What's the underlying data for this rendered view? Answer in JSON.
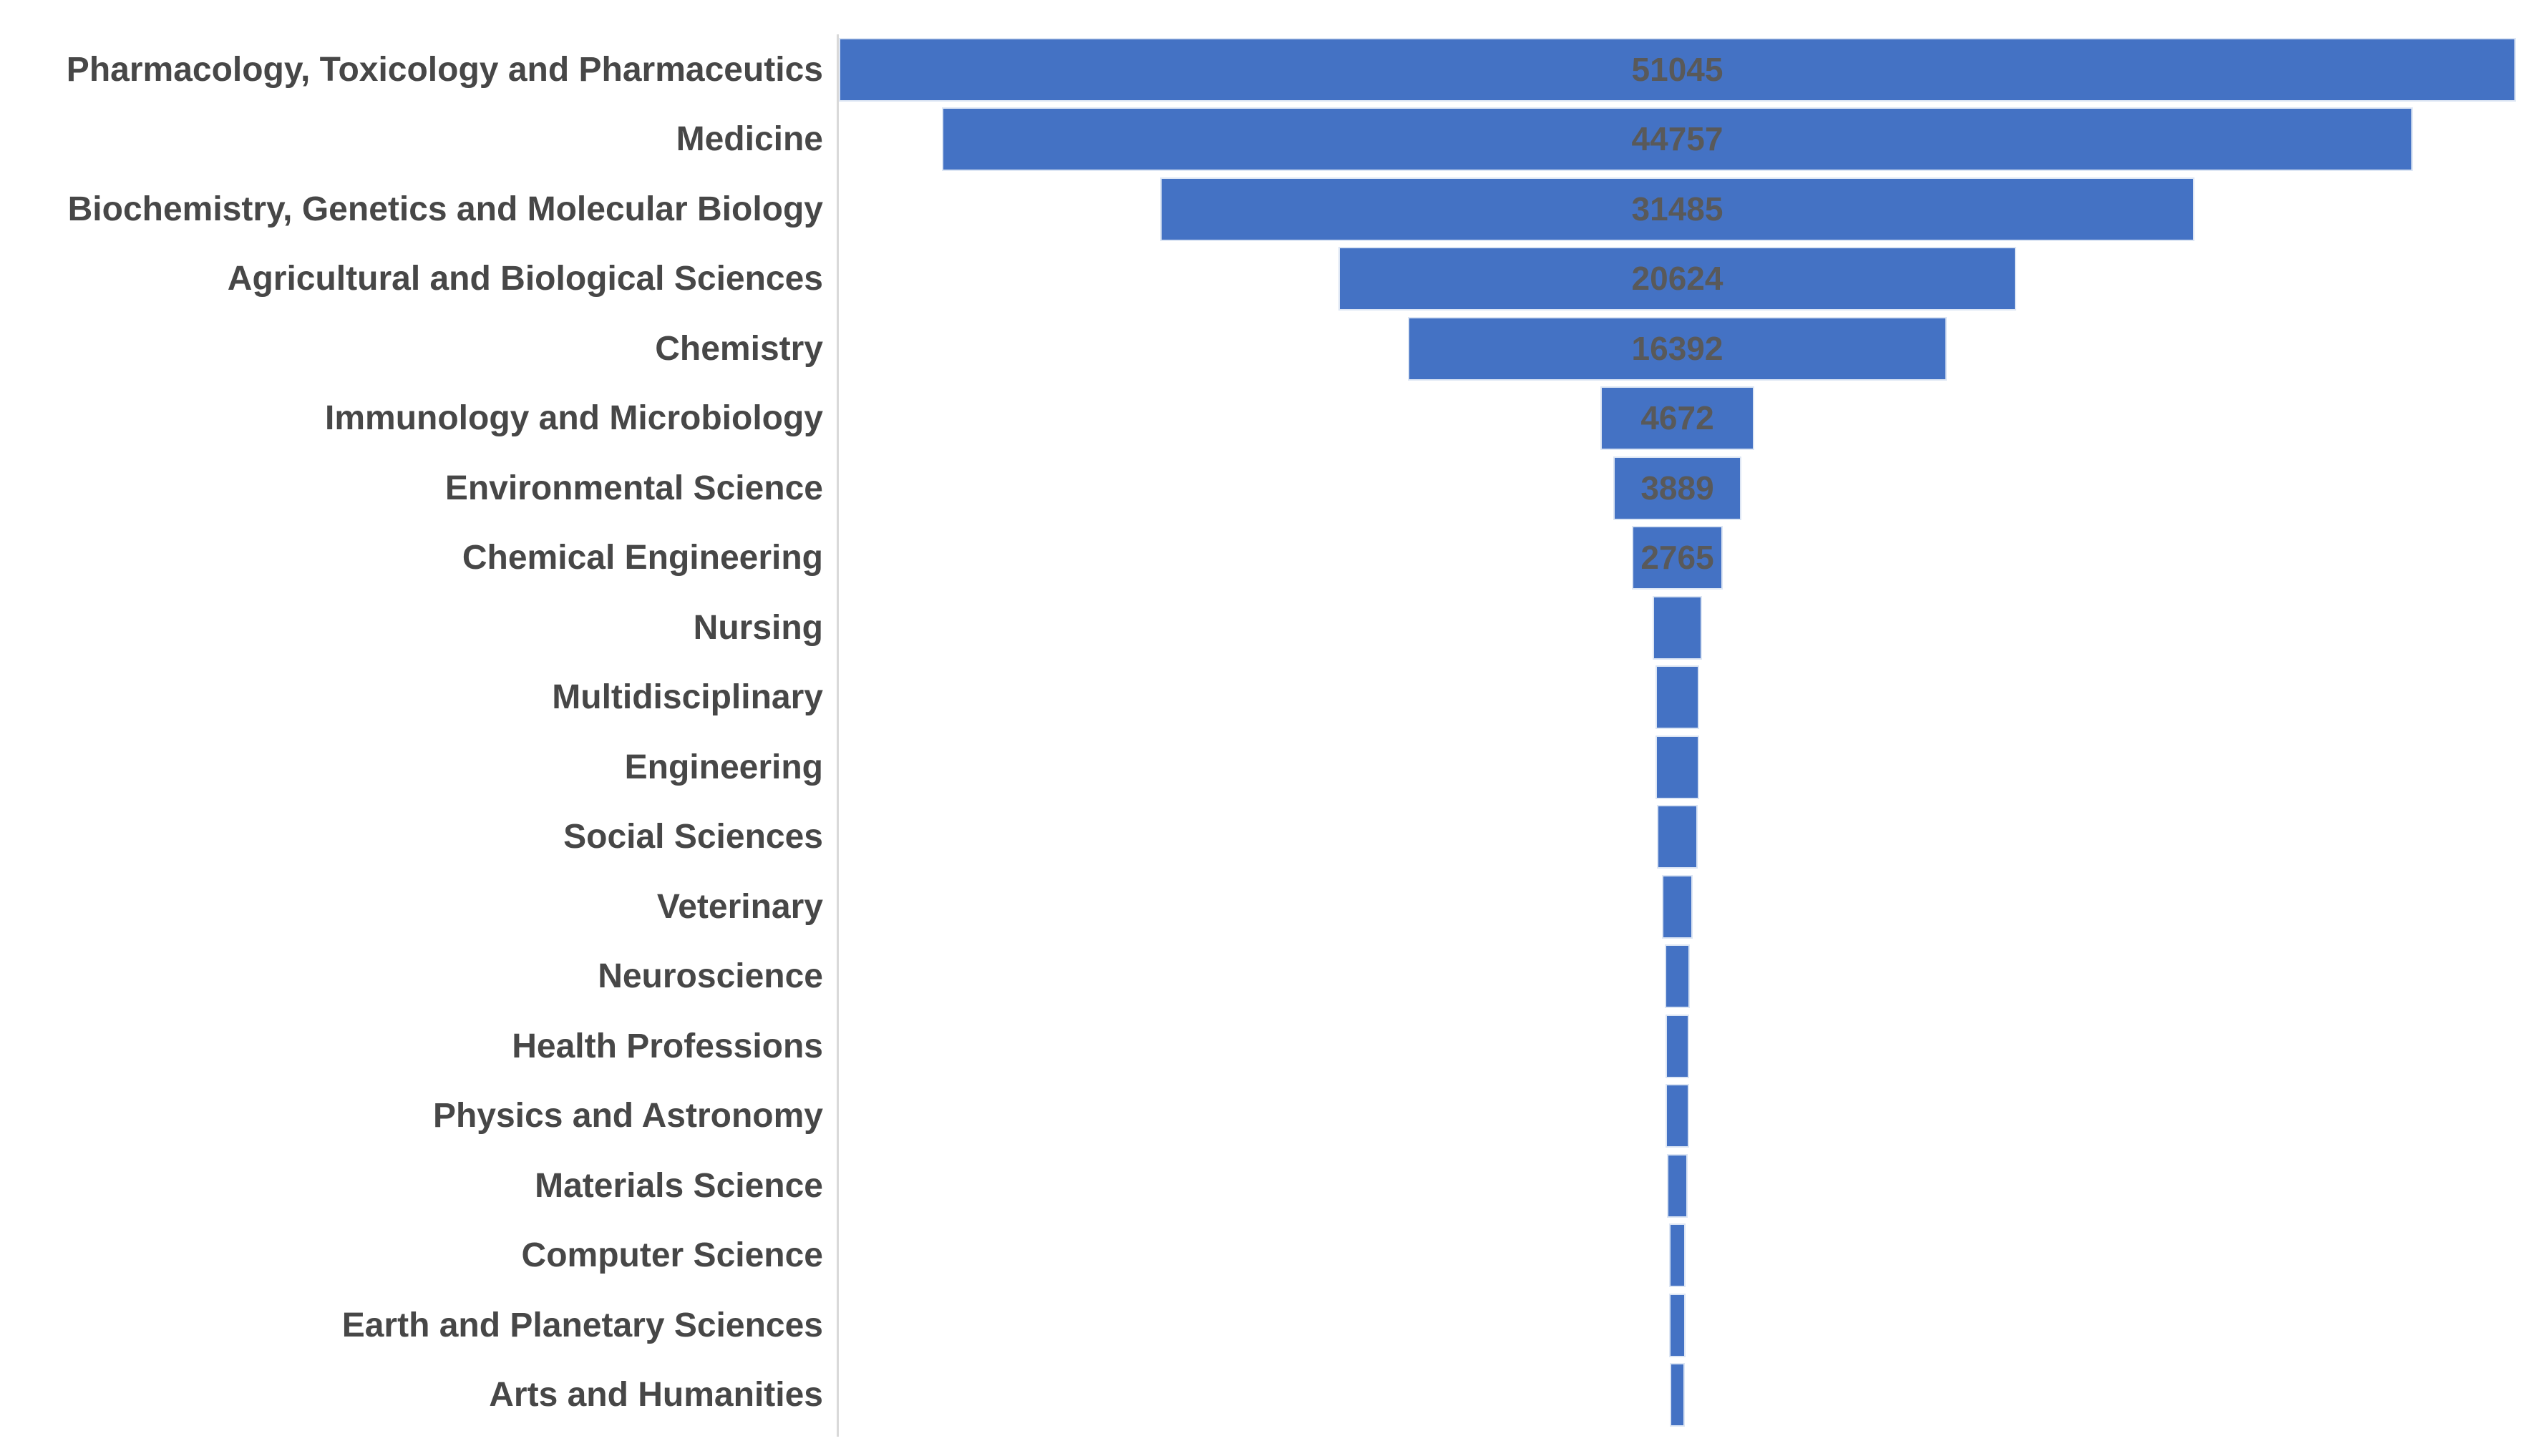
{
  "chart_data": {
    "type": "bar",
    "variant": "funnel",
    "orientation": "horizontal-centered",
    "title": "",
    "xlabel": "",
    "ylabel": "",
    "legend": "none",
    "grid": "off",
    "value_axis_range": [
      0,
      51045
    ],
    "categories": [
      "Pharmacology, Toxicology and Pharmaceutics",
      "Medicine",
      "Biochemistry, Genetics and Molecular Biology",
      "Agricultural and Biological Sciences",
      "Chemistry",
      "Immunology and Microbiology",
      "Environmental Science",
      "Chemical Engineering",
      "Nursing",
      "Multidisciplinary",
      "Engineering",
      "Social Sciences",
      "Veterinary",
      "Neuroscience",
      "Health Professions",
      "Physics and Astronomy",
      "Materials Science",
      "Computer Science",
      "Earth and Planetary Sciences",
      "Arts and Humanities"
    ],
    "values": [
      51045,
      44757,
      31485,
      20624,
      16392,
      4672,
      3889,
      2765,
      1500,
      1330,
      1320,
      1250,
      940,
      750,
      740,
      730,
      640,
      500,
      480,
      470
    ],
    "value_labels": [
      "51045",
      "44757",
      "31485",
      "20624",
      "16392",
      "4672",
      "3889",
      "2765",
      "",
      "",
      "",
      "",
      "",
      "",
      "",
      "",
      "",
      "",
      "",
      ""
    ],
    "values_estimated_from_index": 8,
    "colors": {
      "bar_fill": "#4472c4",
      "bar_border": "#dde6f4",
      "category_label": "#474747",
      "value_label": "#595959",
      "axis_line": "#d9d9d9",
      "background": "#ffffff"
    }
  }
}
